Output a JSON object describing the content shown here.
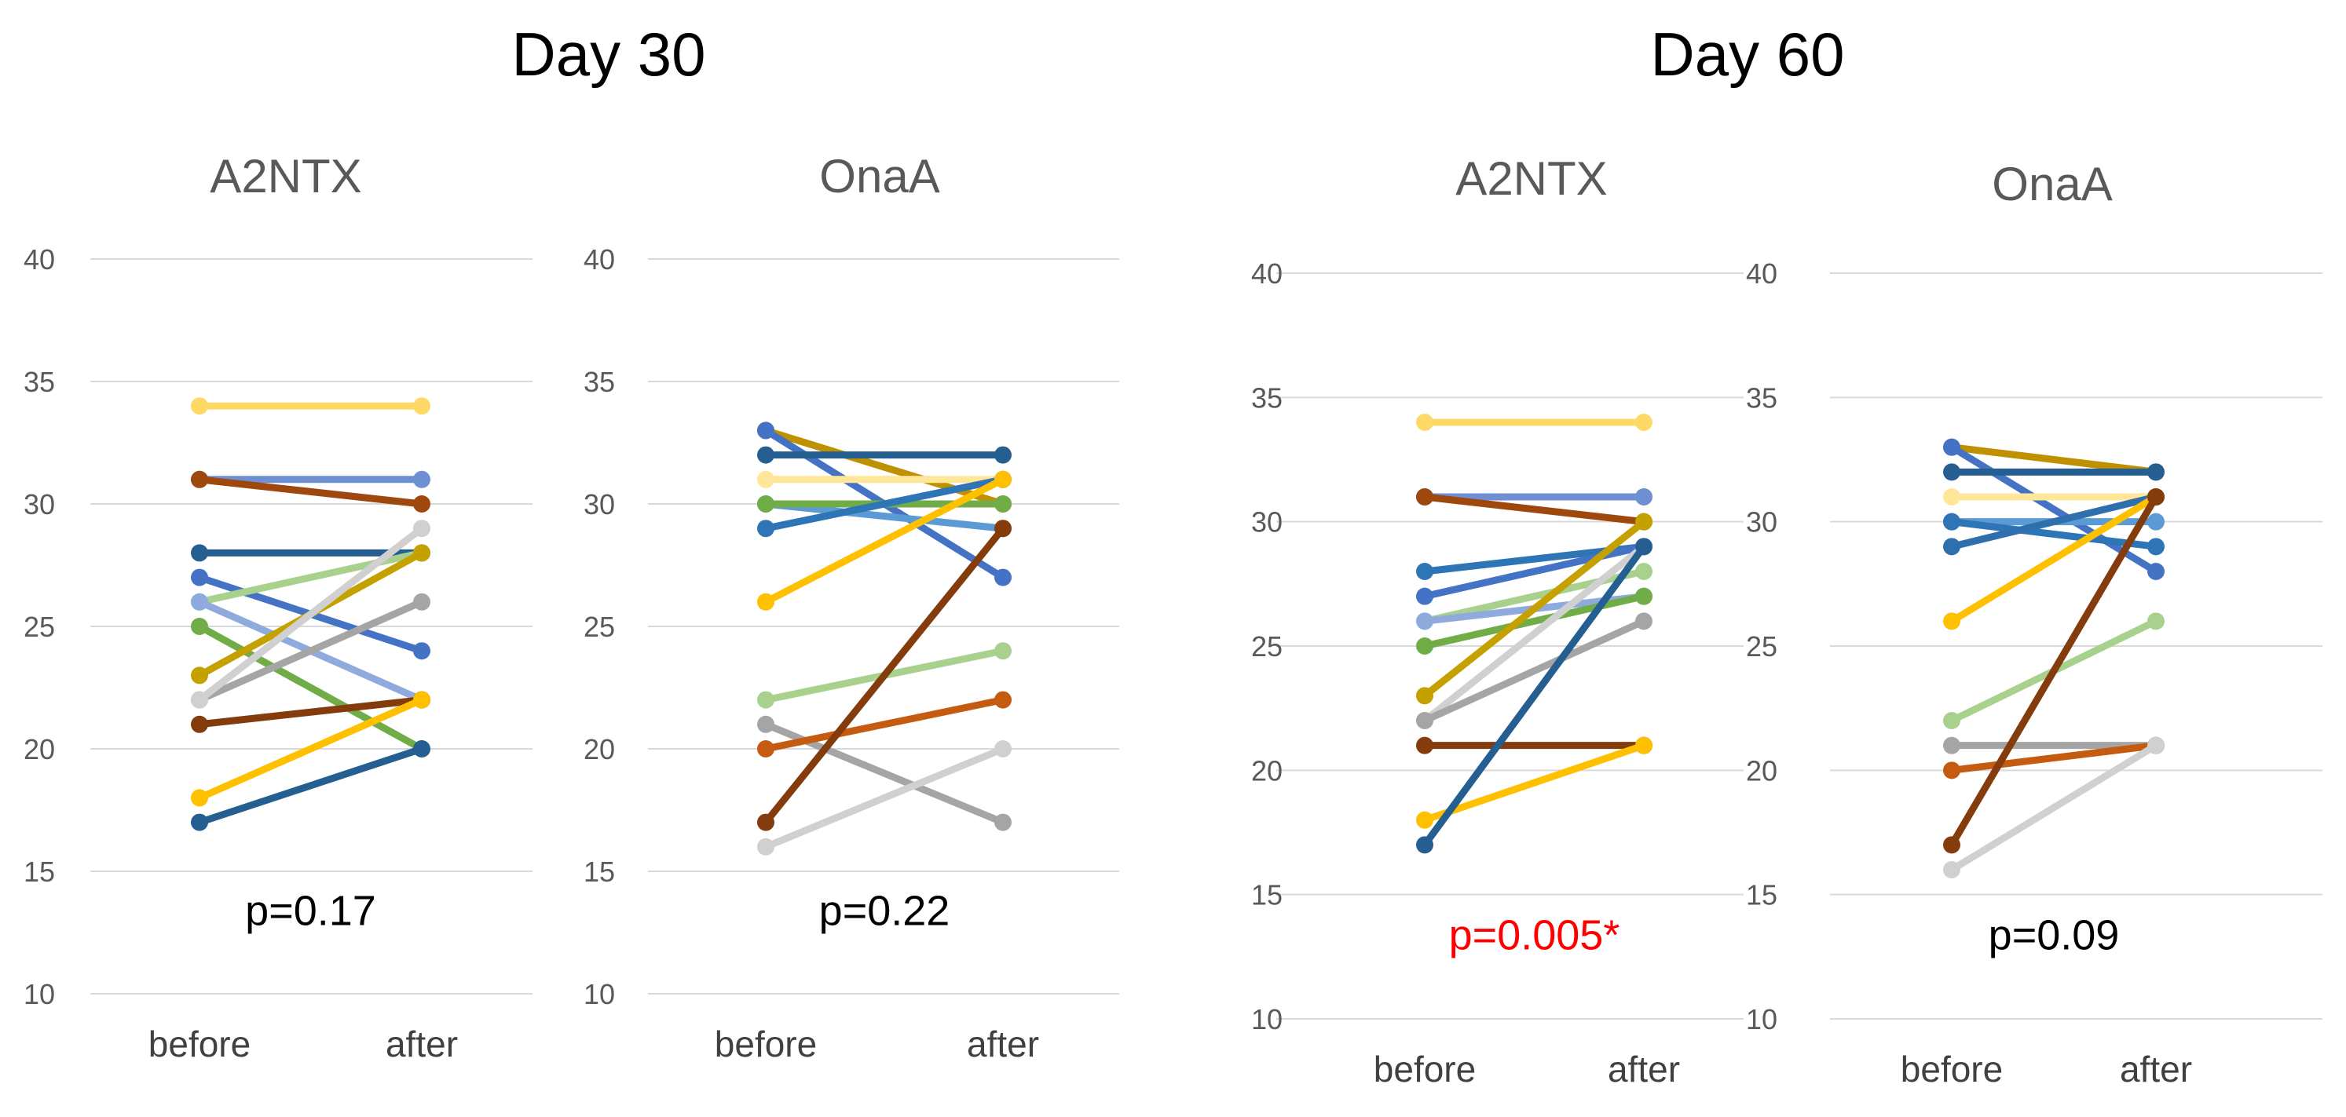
{
  "chart_data": {
    "type": "line",
    "groups": [
      {
        "title": "Day 30",
        "panels": [
          {
            "title": "A2NTX",
            "categories": [
              "before",
              "after"
            ],
            "ylim": [
              10,
              40
            ],
            "yticks": [
              10,
              15,
              20,
              25,
              30,
              35,
              40
            ],
            "p_label": "p=0.17",
            "p_color": "#000000",
            "series": [
              {
                "color": "#FFD966",
                "values": [
                  34,
                  34
                ]
              },
              {
                "color": "#6E8FD1",
                "values": [
                  31,
                  31
                ]
              },
              {
                "color": "#9E480E",
                "values": [
                  31,
                  30
                ]
              },
              {
                "color": "#255E91",
                "values": [
                  28,
                  28
                ]
              },
              {
                "color": "#4472C4",
                "values": [
                  27,
                  24
                ]
              },
              {
                "color": "#A9D18E",
                "values": [
                  26,
                  28
                ]
              },
              {
                "color": "#8FAADC",
                "values": [
                  26,
                  22
                ]
              },
              {
                "color": "#70AD47",
                "values": [
                  25,
                  20
                ]
              },
              {
                "color": "#C5A100",
                "values": [
                  23,
                  28
                ]
              },
              {
                "color": "#A5A5A5",
                "values": [
                  22,
                  26
                ]
              },
              {
                "color": "#D0D0D0",
                "values": [
                  22,
                  29
                ]
              },
              {
                "color": "#843C0C",
                "values": [
                  21,
                  22
                ]
              },
              {
                "color": "#FFC000",
                "values": [
                  18,
                  22
                ]
              },
              {
                "color": "#255E91",
                "values": [
                  17,
                  20
                ]
              }
            ]
          },
          {
            "title": "OnaA",
            "categories": [
              "before",
              "after"
            ],
            "ylim": [
              10,
              40
            ],
            "yticks": [
              10,
              15,
              20,
              25,
              30,
              35,
              40
            ],
            "p_label": "p=0.22",
            "p_color": "#000000",
            "series": [
              {
                "color": "#BF9000",
                "values": [
                  33,
                  30
                ]
              },
              {
                "color": "#4472C4",
                "values": [
                  33,
                  27
                ]
              },
              {
                "color": "#255E91",
                "values": [
                  32,
                  32
                ]
              },
              {
                "color": "#FFE699",
                "values": [
                  31,
                  31
                ]
              },
              {
                "color": "#5B9BD5",
                "values": [
                  30,
                  29
                ]
              },
              {
                "color": "#70AD47",
                "values": [
                  30,
                  30
                ]
              },
              {
                "color": "#2E75B6",
                "values": [
                  29,
                  31
                ]
              },
              {
                "color": "#FFC000",
                "values": [
                  26,
                  31
                ]
              },
              {
                "color": "#A9D18E",
                "values": [
                  22,
                  24
                ]
              },
              {
                "color": "#A5A5A5",
                "values": [
                  21,
                  17
                ]
              },
              {
                "color": "#C55A11",
                "values": [
                  20,
                  22
                ]
              },
              {
                "color": "#843C0C",
                "values": [
                  17,
                  29
                ]
              },
              {
                "color": "#D0D0D0",
                "values": [
                  16,
                  20
                ]
              }
            ]
          }
        ]
      },
      {
        "title": "Day 60",
        "panels": [
          {
            "title": "A2NTX",
            "categories": [
              "before",
              "after"
            ],
            "ylim": [
              10,
              40
            ],
            "yticks": [
              10,
              15,
              20,
              25,
              30,
              35,
              40
            ],
            "p_label": "p=0.005*",
            "p_color": "#FF0000",
            "series": [
              {
                "color": "#FFD966",
                "values": [
                  34,
                  34
                ]
              },
              {
                "color": "#6E8FD1",
                "values": [
                  31,
                  31
                ]
              },
              {
                "color": "#9E480E",
                "values": [
                  31,
                  30
                ]
              },
              {
                "color": "#2E75B6",
                "values": [
                  28,
                  29
                ]
              },
              {
                "color": "#4472C4",
                "values": [
                  27,
                  29
                ]
              },
              {
                "color": "#A9D18E",
                "values": [
                  26,
                  28
                ]
              },
              {
                "color": "#8FAADC",
                "values": [
                  26,
                  27
                ]
              },
              {
                "color": "#70AD47",
                "values": [
                  25,
                  27
                ]
              },
              {
                "color": "#C5A100",
                "values": [
                  23,
                  30
                ]
              },
              {
                "color": "#D0D0D0",
                "values": [
                  22,
                  29
                ]
              },
              {
                "color": "#A5A5A5",
                "values": [
                  22,
                  26
                ]
              },
              {
                "color": "#843C0C",
                "values": [
                  21,
                  21
                ]
              },
              {
                "color": "#FFC000",
                "values": [
                  18,
                  21
                ]
              },
              {
                "color": "#255E91",
                "values": [
                  17,
                  29
                ]
              }
            ]
          },
          {
            "title": "OnaA",
            "categories": [
              "before",
              "after"
            ],
            "ylim": [
              10,
              40
            ],
            "yticks": [
              10,
              15,
              20,
              25,
              30,
              35,
              40
            ],
            "p_label": "p=0.09",
            "p_color": "#000000",
            "series": [
              {
                "color": "#BF9000",
                "values": [
                  33,
                  32
                ]
              },
              {
                "color": "#4472C4",
                "values": [
                  33,
                  28
                ]
              },
              {
                "color": "#255E91",
                "values": [
                  32,
                  32
                ]
              },
              {
                "color": "#FFE699",
                "values": [
                  31,
                  31
                ]
              },
              {
                "color": "#5B9BD5",
                "values": [
                  30,
                  30
                ]
              },
              {
                "color": "#2E75B6",
                "values": [
                  30,
                  29
                ]
              },
              {
                "color": "#2F6FAD",
                "values": [
                  29,
                  31
                ]
              },
              {
                "color": "#FFC000",
                "values": [
                  26,
                  31
                ]
              },
              {
                "color": "#A9D18E",
                "values": [
                  22,
                  26
                ]
              },
              {
                "color": "#A5A5A5",
                "values": [
                  21,
                  21
                ]
              },
              {
                "color": "#C55A11",
                "values": [
                  20,
                  21
                ]
              },
              {
                "color": "#843C0C",
                "values": [
                  17,
                  31
                ]
              },
              {
                "color": "#D0D0D0",
                "values": [
                  16,
                  21
                ]
              }
            ]
          }
        ]
      }
    ]
  }
}
